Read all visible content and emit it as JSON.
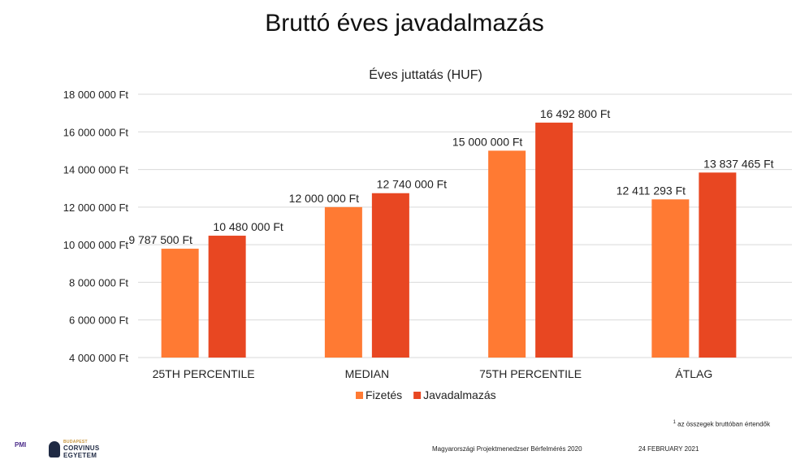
{
  "slide": {
    "title": "Bruttó éves javadalmazás",
    "footnote_mark": "1",
    "footnote_text": " az összegek bruttóban értendők",
    "footer_survey": "Magyarországi Projektmenedzser Bérfelmérés 2020",
    "footer_date": "24 FEBRUARY 2021",
    "logo_pmi": "PMI",
    "logo_corvinus": [
      "BUDAPEST",
      "CORVINUS",
      "EGYETEM"
    ]
  },
  "colors": {
    "fizetes": "#FF7A33",
    "javadalmazas": "#E84722",
    "grid": "#d9d9d9"
  },
  "chart_data": {
    "type": "bar",
    "title": "Éves juttatás (HUF)",
    "categories": [
      "25TH PERCENTILE",
      "MEDIAN",
      "75TH PERCENTILE",
      "ÁTLAG"
    ],
    "series": [
      {
        "name": "Fizetés",
        "values": [
          9787500,
          12000000,
          15000000,
          12411293
        ],
        "labels": [
          "9 787 500 Ft",
          "12 000 000 Ft",
          "15 000 000 Ft",
          "12 411 293 Ft"
        ]
      },
      {
        "name": "Javadalmazás",
        "values": [
          10480000,
          12740000,
          16492800,
          13837465
        ],
        "labels": [
          "10 480 000 Ft",
          "12 740 000 Ft",
          "16 492 800 Ft",
          "13 837 465 Ft"
        ]
      }
    ],
    "ylim": [
      4000000,
      18000000
    ],
    "yticks": [
      {
        "value": 4000000,
        "label": "4 000 000 Ft"
      },
      {
        "value": 6000000,
        "label": "6 000 000 Ft"
      },
      {
        "value": 8000000,
        "label": "8 000 000 Ft"
      },
      {
        "value": 10000000,
        "label": "10 000 000 Ft"
      },
      {
        "value": 12000000,
        "label": "12 000 000 Ft"
      },
      {
        "value": 14000000,
        "label": "14 000 000 Ft"
      },
      {
        "value": 16000000,
        "label": "16 000 000 Ft"
      },
      {
        "value": 18000000,
        "label": "18 000 000 Ft"
      }
    ],
    "grid": true,
    "legend_position": "bottom"
  }
}
